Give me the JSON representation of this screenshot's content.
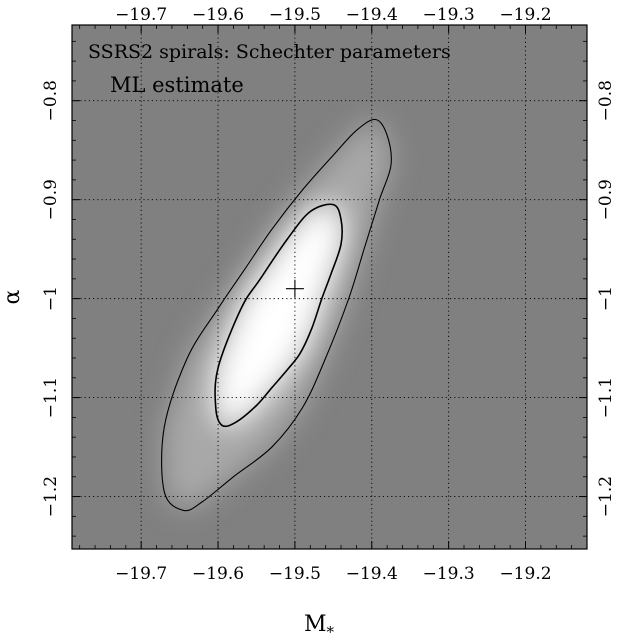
{
  "chart_data": {
    "type": "heatmap",
    "title": "SSRS2 spirals: Schechter parameters",
    "subtitle": "ML estimate",
    "xlabel": "M",
    "xlabel_sub": "*",
    "ylabel": "α",
    "xlim": [
      -19.79,
      -19.12
    ],
    "ylim": [
      -1.253,
      -0.7235
    ],
    "x_ticks": [
      -19.7,
      -19.6,
      -19.5,
      -19.4,
      -19.3,
      -19.2
    ],
    "y_ticks": [
      -1.2,
      -1.1,
      -1.0,
      -0.9,
      -0.8
    ],
    "x_tick_labels": [
      "−19.7",
      "−19.6",
      "−19.5",
      "−19.4",
      "−19.3",
      "−19.2"
    ],
    "y_tick_labels": [
      "−1.2",
      "−1.1",
      "−1",
      "−0.9",
      "−0.8"
    ],
    "grid": true,
    "colormap": "grayscale likelihood (white = maximum)",
    "background_color": "#808080",
    "best_fit": {
      "x": -19.5,
      "y": -0.99
    },
    "likelihood_peak": {
      "x": -19.52,
      "y": -1.0
    },
    "contours": [
      {
        "name": "inner",
        "points": [
          [
            -19.44,
            -0.92
          ],
          [
            -19.45,
            -0.905
          ],
          [
            -19.48,
            -0.912
          ],
          [
            -19.51,
            -0.94
          ],
          [
            -19.545,
            -0.98
          ],
          [
            -19.57,
            -1.01
          ],
          [
            -19.6,
            -1.07
          ],
          [
            -19.603,
            -1.11
          ],
          [
            -19.595,
            -1.128
          ],
          [
            -19.577,
            -1.125
          ],
          [
            -19.55,
            -1.108
          ],
          [
            -19.53,
            -1.09
          ],
          [
            -19.51,
            -1.072
          ],
          [
            -19.493,
            -1.055
          ],
          [
            -19.478,
            -1.03
          ],
          [
            -19.465,
            -1.0
          ],
          [
            -19.453,
            -0.975
          ],
          [
            -19.44,
            -0.945
          ]
        ]
      },
      {
        "name": "outer",
        "points": [
          [
            -19.38,
            -0.835
          ],
          [
            -19.395,
            -0.819
          ],
          [
            -19.42,
            -0.83
          ],
          [
            -19.45,
            -0.855
          ],
          [
            -19.49,
            -0.89
          ],
          [
            -19.53,
            -0.93
          ],
          [
            -19.565,
            -0.97
          ],
          [
            -19.6,
            -1.01
          ],
          [
            -19.64,
            -1.06
          ],
          [
            -19.67,
            -1.13
          ],
          [
            -19.67,
            -1.195
          ],
          [
            -19.645,
            -1.214
          ],
          [
            -19.62,
            -1.205
          ],
          [
            -19.58,
            -1.18
          ],
          [
            -19.53,
            -1.15
          ],
          [
            -19.49,
            -1.11
          ],
          [
            -19.46,
            -1.06
          ],
          [
            -19.43,
            -1.0
          ],
          [
            -19.41,
            -0.95
          ],
          [
            -19.39,
            -0.9
          ],
          [
            -19.375,
            -0.865
          ]
        ]
      }
    ]
  }
}
